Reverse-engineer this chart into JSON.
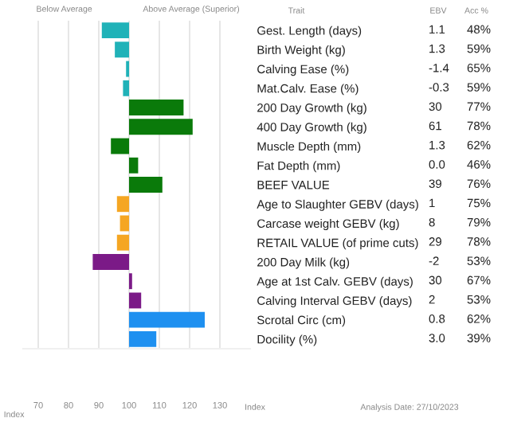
{
  "chart_data": [
    {
      "type": "bar",
      "orientation": "horizontal",
      "xlabel": "Index",
      "ylabel": "Trait",
      "categories": [
        "Gest. Length (days)",
        "Birth Weight (kg)",
        "Calving Ease (%)",
        "Mat.Calv. Ease (%)",
        "200 Day Growth (kg)",
        "400 Day Growth (kg)",
        "Muscle Depth (mm)",
        "Fat Depth (mm)",
        "BEEF VALUE",
        "Age to Slaughter GEBV (days)",
        "Carcase weight GEBV (kg)",
        "RETAIL VALUE (of prime cuts)",
        "200 Day Milk (kg)",
        "Age at 1st Calv. GEBV (days)",
        "Calving Interval GEBV (days)",
        "Scrotal Circ (cm)",
        "Docility (%)"
      ],
      "base": [
        100,
        100,
        100,
        100,
        100,
        100,
        100,
        100,
        100,
        100,
        100,
        100,
        100,
        100,
        100,
        100,
        100
      ],
      "values": [
        -9,
        -4.7,
        -1,
        -2,
        18,
        21,
        -6,
        3,
        11,
        -4,
        -3,
        -4,
        -12,
        1,
        4,
        25,
        9
      ],
      "colors": [
        "#20b2b8",
        "#20b2b8",
        "#20b2b8",
        "#20b2b8",
        "#0a7a0a",
        "#0a7a0a",
        "#0a7a0a",
        "#0a7a0a",
        "#0a7a0a",
        "#f5a623",
        "#f5a623",
        "#f5a623",
        "#7b1a87",
        "#7b1a87",
        "#7b1a87",
        "#1e90f0",
        "#1e90f0"
      ],
      "xlim": [
        65,
        140
      ],
      "xticks": [
        70,
        80,
        90,
        100,
        110,
        120,
        130
      ],
      "grid": "x",
      "annotations": [
        "Below Average",
        "Above Average (Superior)",
        "Index",
        "Analysis Date: 27/10/2023"
      ]
    },
    {
      "type": "other",
      "annotations": [
        "EBV",
        "Acc %",
        "1.1",
        "48%",
        "1.3",
        "59%",
        "-1.4",
        "65%",
        "-0.3",
        "59%",
        "30",
        "77%",
        "61",
        "78%",
        "1.3",
        "62%",
        "0.0",
        "46%",
        "39",
        "76%",
        "1",
        "75%",
        "8",
        "79%",
        "29",
        "78%",
        "-2",
        "53%",
        "30",
        "67%",
        "2",
        "53%",
        "0.8",
        "62%",
        "3.0",
        "39%"
      ]
    }
  ]
}
